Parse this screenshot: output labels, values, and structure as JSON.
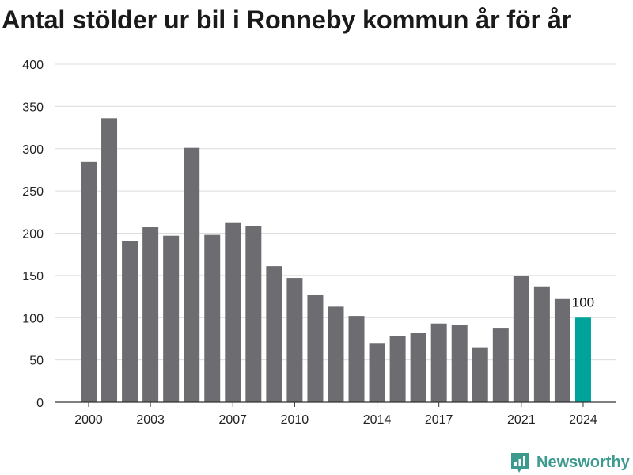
{
  "title": "Antal stölder ur bil i Ronneby kommun år för år",
  "brand": {
    "name": "Newsworthy",
    "icon": "newsworthy-logo-icon",
    "color": "#3d9a8e"
  },
  "colors": {
    "bar": "#6d6c71",
    "highlight": "#00a399",
    "grid": "#dcdcdc",
    "axis": "#333333"
  },
  "chart_data": {
    "type": "bar",
    "title": "Antal stölder ur bil i Ronneby kommun år för år",
    "xlabel": "",
    "ylabel": "",
    "categories": [
      2000,
      2001,
      2002,
      2003,
      2004,
      2005,
      2006,
      2007,
      2008,
      2009,
      2010,
      2011,
      2012,
      2013,
      2014,
      2015,
      2016,
      2017,
      2018,
      2019,
      2020,
      2021,
      2022,
      2023,
      2024
    ],
    "values": [
      284,
      336,
      191,
      207,
      197,
      301,
      198,
      212,
      208,
      161,
      147,
      127,
      113,
      102,
      70,
      78,
      82,
      93,
      91,
      65,
      88,
      149,
      137,
      122,
      100
    ],
    "x_tick_labels": [
      "2000",
      "2003",
      "2007",
      "2010",
      "2014",
      "2017",
      "2021",
      "2024"
    ],
    "y_ticks": [
      0,
      50,
      100,
      150,
      200,
      250,
      300,
      350,
      400
    ],
    "ylim": [
      0,
      400
    ],
    "grid": true,
    "highlight_index": 24,
    "data_labels": [
      {
        "index": 24,
        "text": "100"
      }
    ]
  }
}
